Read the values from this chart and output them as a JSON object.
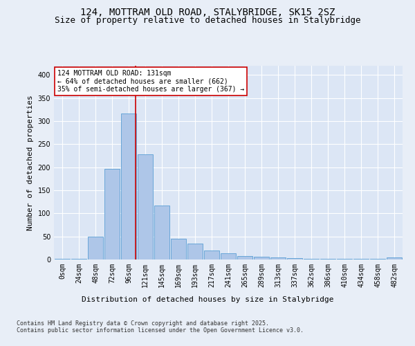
{
  "title_line1": "124, MOTTRAM OLD ROAD, STALYBRIDGE, SK15 2SZ",
  "title_line2": "Size of property relative to detached houses in Stalybridge",
  "xlabel": "Distribution of detached houses by size in Stalybridge",
  "ylabel": "Number of detached properties",
  "categories": [
    "0sqm",
    "24sqm",
    "48sqm",
    "72sqm",
    "96sqm",
    "121sqm",
    "145sqm",
    "169sqm",
    "193sqm",
    "217sqm",
    "241sqm",
    "265sqm",
    "289sqm",
    "313sqm",
    "337sqm",
    "362sqm",
    "386sqm",
    "410sqm",
    "434sqm",
    "458sqm",
    "482sqm"
  ],
  "values": [
    2,
    2,
    50,
    197,
    317,
    228,
    117,
    45,
    34,
    20,
    13,
    8,
    6,
    4,
    3,
    2,
    2,
    1,
    1,
    1,
    4
  ],
  "bar_color": "#aec6e8",
  "bar_edge_color": "#5a9fd4",
  "vline_color": "#cc0000",
  "vline_pos": 4.42,
  "annotation_text": "124 MOTTRAM OLD ROAD: 131sqm\n← 64% of detached houses are smaller (662)\n35% of semi-detached houses are larger (367) →",
  "annotation_box_color": "#ffffff",
  "annotation_box_edge": "#cc0000",
  "background_color": "#e8eef7",
  "plot_bg_color": "#dce6f5",
  "grid_color": "#ffffff",
  "footer_text": "Contains HM Land Registry data © Crown copyright and database right 2025.\nContains public sector information licensed under the Open Government Licence v3.0.",
  "ylim": [
    0,
    420
  ],
  "yticks": [
    0,
    50,
    100,
    150,
    200,
    250,
    300,
    350,
    400
  ],
  "title_fontsize": 10,
  "subtitle_fontsize": 9,
  "ylabel_fontsize": 8,
  "xlabel_fontsize": 8,
  "tick_fontsize": 7,
  "footer_fontsize": 6,
  "ann_fontsize": 7
}
